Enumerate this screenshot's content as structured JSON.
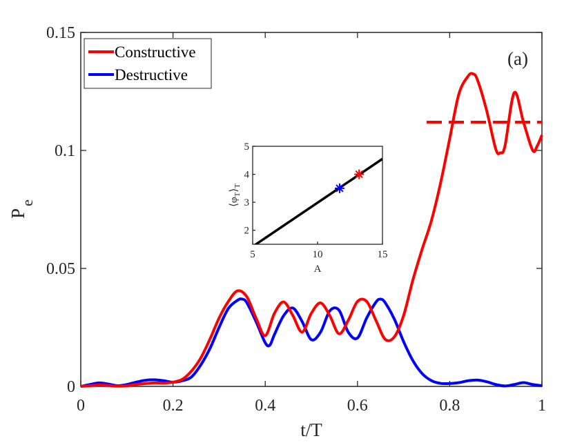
{
  "chart_data": [
    {
      "type": "line",
      "panel_label": "(a)",
      "xlabel": "t/T",
      "ylabel": "P",
      "ylabel_subscript": "e",
      "xlim": [
        0,
        1
      ],
      "ylim": [
        0,
        0.15
      ],
      "xticks": [
        0,
        0.2,
        0.4,
        0.6,
        0.8,
        1
      ],
      "xtick_labels": [
        "0",
        "0.2",
        "0.4",
        "0.6",
        "0.8",
        "1"
      ],
      "yticks": [
        0,
        0.05,
        0.1,
        0.15
      ],
      "ytick_labels": [
        "0",
        "0.05",
        "0.1",
        "0.15"
      ],
      "legend": {
        "position": "top-left",
        "entries": [
          "Constructive",
          "Destructive"
        ]
      },
      "series": [
        {
          "name": "Constructive",
          "color": "#ff0000",
          "style": "solid",
          "x": [
            0,
            0.02,
            0.04,
            0.06,
            0.08,
            0.1,
            0.12,
            0.14,
            0.16,
            0.18,
            0.2,
            0.22,
            0.24,
            0.26,
            0.28,
            0.3,
            0.32,
            0.34,
            0.36,
            0.38,
            0.4,
            0.42,
            0.44,
            0.46,
            0.48,
            0.5,
            0.52,
            0.54,
            0.56,
            0.58,
            0.6,
            0.62,
            0.64,
            0.66,
            0.68,
            0.7,
            0.72,
            0.74,
            0.76,
            0.78,
            0.8,
            0.82,
            0.84,
            0.85,
            0.86,
            0.88,
            0.9,
            0.91,
            0.92,
            0.94,
            0.96,
            0.98,
            0.99,
            1.0
          ],
          "y": [
            0,
            0.0003,
            0.0006,
            0.0004,
            0.0001,
            0.0003,
            0.0008,
            0.0012,
            0.0015,
            0.0014,
            0.0018,
            0.003,
            0.0065,
            0.012,
            0.02,
            0.029,
            0.036,
            0.0405,
            0.038,
            0.029,
            0.0215,
            0.031,
            0.0358,
            0.03,
            0.023,
            0.031,
            0.0354,
            0.03,
            0.0223,
            0.028,
            0.036,
            0.036,
            0.028,
            0.02,
            0.021,
            0.03,
            0.045,
            0.058,
            0.07,
            0.086,
            0.105,
            0.124,
            0.1315,
            0.1325,
            0.13,
            0.117,
            0.1005,
            0.099,
            0.102,
            0.1245,
            0.112,
            0.1,
            0.102,
            0.1065
          ]
        },
        {
          "name": "Destructive",
          "color": "#0000ff",
          "style": "solid",
          "x": [
            0,
            0.02,
            0.04,
            0.06,
            0.08,
            0.1,
            0.12,
            0.14,
            0.16,
            0.18,
            0.2,
            0.22,
            0.24,
            0.26,
            0.28,
            0.3,
            0.32,
            0.34,
            0.35,
            0.36,
            0.38,
            0.4,
            0.41,
            0.42,
            0.44,
            0.46,
            0.48,
            0.5,
            0.52,
            0.54,
            0.56,
            0.58,
            0.6,
            0.62,
            0.64,
            0.65,
            0.66,
            0.68,
            0.7,
            0.72,
            0.74,
            0.76,
            0.78,
            0.8,
            0.82,
            0.84,
            0.86,
            0.88,
            0.9,
            0.92,
            0.94,
            0.96,
            0.98,
            1.0
          ],
          "y": [
            0,
            0.0008,
            0.0015,
            0.001,
            0.0003,
            0.0008,
            0.0018,
            0.0026,
            0.0028,
            0.0024,
            0.0018,
            0.0024,
            0.004,
            0.009,
            0.016,
            0.025,
            0.033,
            0.0365,
            0.037,
            0.0355,
            0.0275,
            0.0185,
            0.0175,
            0.022,
            0.03,
            0.0332,
            0.0275,
            0.0198,
            0.023,
            0.032,
            0.0323,
            0.023,
            0.0205,
            0.029,
            0.0357,
            0.037,
            0.0355,
            0.0285,
            0.019,
            0.011,
            0.0055,
            0.0025,
            0.0013,
            0.0012,
            0.0016,
            0.0024,
            0.0027,
            0.002,
            0.0008,
            0.0002,
            0.0008,
            0.0016,
            0.0008,
            0.0003
          ]
        },
        {
          "name": "Constructive average",
          "color": "#ff0000",
          "style": "dashed",
          "x": [
            0.75,
            1.0
          ],
          "y": [
            0.112,
            0.112
          ]
        }
      ]
    },
    {
      "type": "line",
      "inset": true,
      "xlabel": "A",
      "ylabel": "⟨φ",
      "ylabel_sub": "T",
      "ylabel_tail": "⟩",
      "ylabel_tail_sub": "T",
      "xlim": [
        5,
        15
      ],
      "ylim": [
        1.5,
        5
      ],
      "xticks": [
        5,
        10,
        15
      ],
      "xtick_labels": [
        "5",
        "10",
        "15"
      ],
      "yticks": [
        2,
        3,
        4,
        5
      ],
      "ytick_labels": [
        "2",
        "3",
        "4",
        "5"
      ],
      "series": [
        {
          "name": "fit",
          "color": "#000000",
          "style": "solid",
          "x": [
            5,
            15
          ],
          "y": [
            1.42,
            4.55
          ]
        }
      ],
      "markers": [
        {
          "name": "Destructive",
          "color": "#0000ff",
          "symbol": "asterisk",
          "x": 11.7,
          "y": 3.5
        },
        {
          "name": "Constructive",
          "color": "#ff0000",
          "symbol": "asterisk",
          "x": 13.2,
          "y": 4.0
        }
      ]
    }
  ]
}
